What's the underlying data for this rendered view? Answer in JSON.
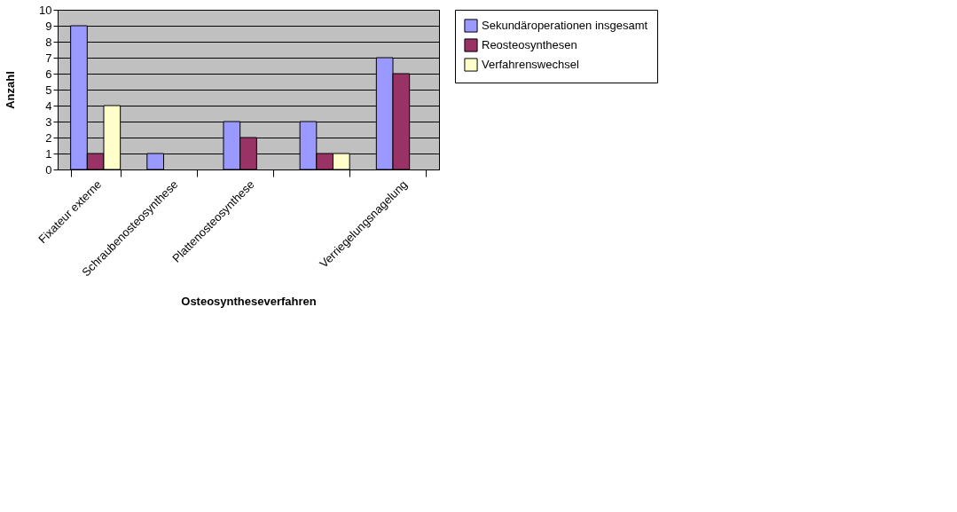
{
  "chart_data": {
    "type": "bar",
    "xlabel": "Osteosyntheseverfahren",
    "ylabel": "Anzahl",
    "categories": [
      "Fixateur externe",
      "Schraubenosteosynthese",
      "Plattenosteosynthese",
      null,
      "Verriegelungsnagelung"
    ],
    "series": [
      {
        "name": "Sekundäroperationen insgesamt",
        "color": "#9999ff",
        "values": [
          9,
          1,
          3,
          3,
          7
        ]
      },
      {
        "name": "Reosteosynthesen",
        "color": "#993366",
        "values": [
          1,
          null,
          2,
          1,
          6
        ]
      },
      {
        "name": "Verfahrenswechsel",
        "color": "#ffffcc",
        "values": [
          4,
          null,
          null,
          1,
          null
        ]
      }
    ],
    "ylim": [
      0,
      10
    ],
    "yticks": [
      0,
      1,
      2,
      3,
      4,
      5,
      6,
      7,
      8,
      9,
      10
    ],
    "grid": "y",
    "legend": "right"
  }
}
